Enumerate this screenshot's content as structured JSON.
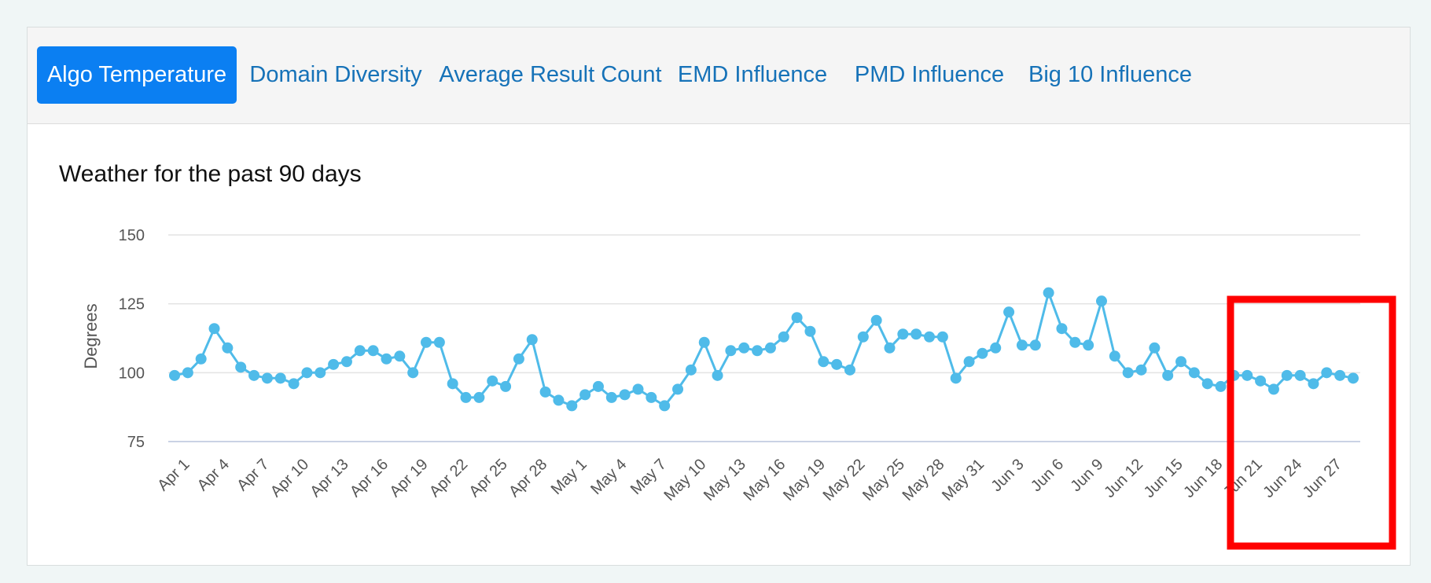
{
  "tabs": [
    {
      "label": "Algo Temperature",
      "active": true
    },
    {
      "label": "Domain Diversity",
      "active": false
    },
    {
      "label": "Average Result Count",
      "active": false
    },
    {
      "label": "EMD Influence",
      "active": false
    },
    {
      "label": "PMD Influence",
      "active": false
    },
    {
      "label": "Big 10 Influence",
      "active": false
    }
  ],
  "colors": {
    "series": "#4fbbe9",
    "highlight": "#ff0000",
    "active_tab": "#0b7ff2",
    "tab_text": "#1672b8"
  },
  "chart_data": {
    "type": "line",
    "title": "Weather for the past 90 days",
    "ylabel": "Degrees",
    "xlabel": "",
    "ylim": [
      75,
      150
    ],
    "yticks": [
      75,
      100,
      125,
      150
    ],
    "grid": true,
    "x_tick_labels": [
      "Apr 1",
      "Apr 4",
      "Apr 7",
      "Apr 10",
      "Apr 13",
      "Apr 16",
      "Apr 19",
      "Apr 22",
      "Apr 25",
      "Apr 28",
      "May 1",
      "May 4",
      "May 7",
      "May 10",
      "May 13",
      "May 16",
      "May 19",
      "May 22",
      "May 25",
      "May 28",
      "May 31",
      "Jun 3",
      "Jun 6",
      "Jun 9",
      "Jun 12",
      "Jun 15",
      "Jun 18",
      "Jun 21",
      "Jun 24",
      "Jun 27"
    ],
    "x_start": "Apr 1",
    "x_end": "Jun 28",
    "values": [
      99,
      100,
      105,
      116,
      109,
      102,
      99,
      98,
      98,
      96,
      100,
      100,
      103,
      104,
      108,
      108,
      105,
      106,
      100,
      111,
      111,
      96,
      91,
      91,
      97,
      95,
      105,
      112,
      93,
      90,
      88,
      92,
      95,
      91,
      92,
      94,
      91,
      88,
      94,
      101,
      111,
      99,
      108,
      109,
      108,
      109,
      113,
      120,
      115,
      104,
      103,
      101,
      113,
      119,
      109,
      114,
      114,
      113,
      113,
      98,
      104,
      107,
      109,
      122,
      110,
      110,
      129,
      116,
      111,
      110,
      126,
      106,
      100,
      101,
      109,
      99,
      104,
      100,
      96,
      95,
      99,
      99,
      97,
      94,
      99,
      99,
      96,
      100,
      99,
      98
    ]
  }
}
